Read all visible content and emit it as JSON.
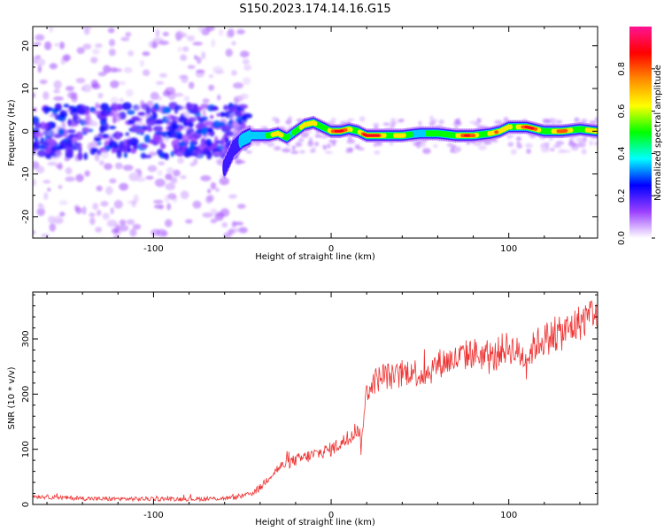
{
  "figure": {
    "title": "S150.2023.174.14.16.G15"
  },
  "chart_data": [
    {
      "type": "heatmap",
      "title": "",
      "xlabel": "Height of straight line (km)",
      "ylabel": "Frequency (Hz)",
      "xlim": [
        -168,
        150
      ],
      "ylim": [
        -25,
        24.5
      ],
      "xticks": [
        -100,
        0,
        100
      ],
      "yticks": [
        -20,
        -10,
        0,
        10,
        20
      ],
      "colorbar": {
        "label": "Normalized spectral amplitude",
        "range": [
          0.0,
          1.0
        ],
        "ticks": [
          0.0,
          0.2,
          0.4,
          0.6,
          0.8
        ],
        "tick_labels": [
          "0.0",
          "0.2",
          "0.4",
          "0.6",
          "0.8"
        ],
        "colormap": [
          "#ffffff",
          "#9b40ff",
          "#0000ff",
          "#00ffff",
          "#00ff00",
          "#ffff00",
          "#ff8c00",
          "#ff0000",
          "#ff1493"
        ]
      },
      "ridge": {
        "x": [
          -60,
          -55,
          -50,
          -45,
          -40,
          -35,
          -30,
          -25,
          -20,
          -15,
          -10,
          -5,
          0,
          5,
          10,
          15,
          20,
          30,
          40,
          50,
          60,
          70,
          80,
          90,
          95,
          100,
          110,
          120,
          130,
          140,
          150
        ],
        "y": [
          -8.5,
          -4,
          -2,
          -1,
          -1,
          -1,
          -0.5,
          -1.5,
          0,
          1.5,
          2,
          1,
          0,
          0,
          0.5,
          0,
          -1,
          -1,
          -1,
          -0.5,
          -0.5,
          -1,
          -1,
          -0.5,
          0,
          1,
          1,
          0,
          0,
          0.5,
          0
        ],
        "amplitude": [
          0.3,
          0.3,
          0.35,
          0.45,
          0.55,
          0.6,
          0.65,
          0.7,
          0.7,
          0.7,
          0.75,
          0.8,
          0.85,
          0.85,
          0.85,
          0.85,
          0.95,
          0.95,
          0.6,
          0.55,
          0.55,
          0.8,
          0.85,
          0.8,
          0.7,
          0.9,
          0.9,
          0.75,
          0.8,
          0.75,
          0.7
        ]
      },
      "noise_region": {
        "x_range": [
          -168,
          -55
        ],
        "central_band_hz": [
          -5,
          5
        ],
        "amplitude_max": 0.3
      }
    },
    {
      "type": "line",
      "title": "",
      "xlabel": "Height of straight line (km)",
      "ylabel": "SNR (10 * v/v)",
      "xlim": [
        -168,
        150
      ],
      "ylim": [
        0,
        385
      ],
      "xticks": [
        -100,
        0,
        100
      ],
      "yticks": [
        0,
        100,
        200,
        300
      ],
      "color": "#ee3333",
      "series": [
        {
          "name": "SNR",
          "x": [
            -168,
            -150,
            -130,
            -110,
            -90,
            -70,
            -55,
            -50,
            -45,
            -40,
            -35,
            -30,
            -25,
            -20,
            -15,
            -10,
            -5,
            0,
            5,
            10,
            15,
            16,
            17,
            18,
            20,
            25,
            30,
            35,
            40,
            45,
            50,
            55,
            60,
            65,
            70,
            75,
            80,
            85,
            90,
            95,
            100,
            105,
            110,
            115,
            120,
            125,
            130,
            135,
            140,
            145,
            148,
            150
          ],
          "y": [
            15,
            12,
            10,
            10,
            10,
            10,
            12,
            15,
            20,
            30,
            50,
            65,
            75,
            80,
            85,
            90,
            95,
            100,
            110,
            120,
            140,
            130,
            95,
            155,
            205,
            225,
            235,
            230,
            235,
            245,
            235,
            240,
            255,
            260,
            262,
            270,
            275,
            270,
            260,
            280,
            285,
            275,
            265,
            290,
            300,
            305,
            310,
            320,
            330,
            340,
            355,
            320
          ]
        }
      ]
    }
  ]
}
